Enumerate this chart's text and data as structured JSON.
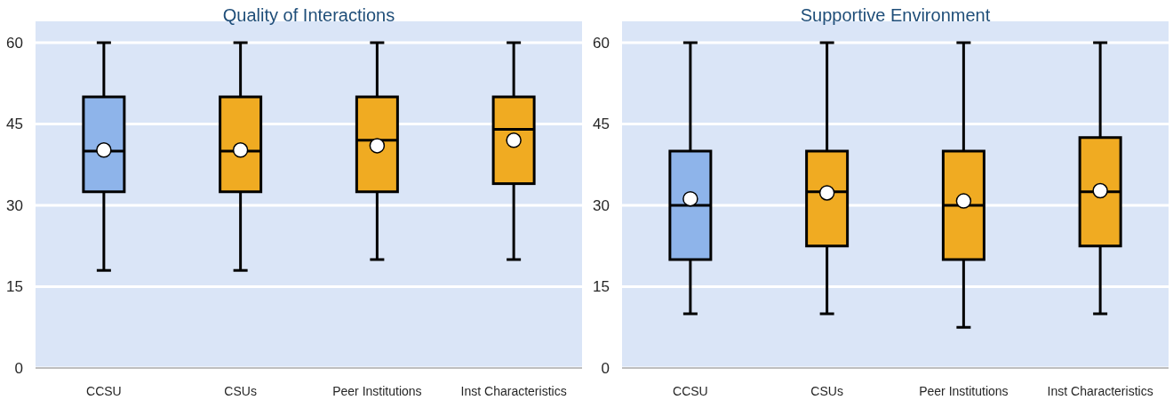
{
  "chart_data": [
    {
      "type": "box",
      "title": "Quality of Interactions",
      "categories": [
        "CCSU",
        "CSUs",
        "Peer Institutions",
        "Inst Characteristics"
      ],
      "boxes": [
        {
          "low": 18,
          "q1": 32.5,
          "median": 40,
          "q3": 50,
          "high": 60,
          "mean": 40.2
        },
        {
          "low": 18,
          "q1": 32.5,
          "median": 40,
          "q3": 50,
          "high": 60,
          "mean": 40.2
        },
        {
          "low": 20,
          "q1": 32.5,
          "median": 42,
          "q3": 50,
          "high": 60,
          "mean": 41
        },
        {
          "low": 20,
          "q1": 34,
          "median": 44,
          "q3": 50,
          "high": 60,
          "mean": 42
        }
      ],
      "colors": [
        "#8eb4ea",
        "#f0ab22",
        "#f0ab22",
        "#f0ab22"
      ],
      "ylim": [
        0,
        60
      ],
      "yticks": [
        0,
        15,
        30,
        45,
        60
      ],
      "grid": "y"
    },
    {
      "type": "box",
      "title": "Supportive Environment",
      "categories": [
        "CCSU",
        "CSUs",
        "Peer Institutions",
        "Inst Characteristics"
      ],
      "boxes": [
        {
          "low": 10,
          "q1": 20,
          "median": 30,
          "q3": 40,
          "high": 60,
          "mean": 31.2
        },
        {
          "low": 10,
          "q1": 22.5,
          "median": 32.5,
          "q3": 40,
          "high": 60,
          "mean": 32.3
        },
        {
          "low": 7.5,
          "q1": 20,
          "median": 30,
          "q3": 40,
          "high": 60,
          "mean": 30.8
        },
        {
          "low": 10,
          "q1": 22.5,
          "median": 32.5,
          "q3": 42.5,
          "high": 60,
          "mean": 32.7
        }
      ],
      "colors": [
        "#8eb4ea",
        "#f0ab22",
        "#f0ab22",
        "#f0ab22"
      ],
      "ylim": [
        0,
        60
      ],
      "yticks": [
        0,
        15,
        30,
        45,
        60
      ],
      "grid": "y"
    }
  ]
}
